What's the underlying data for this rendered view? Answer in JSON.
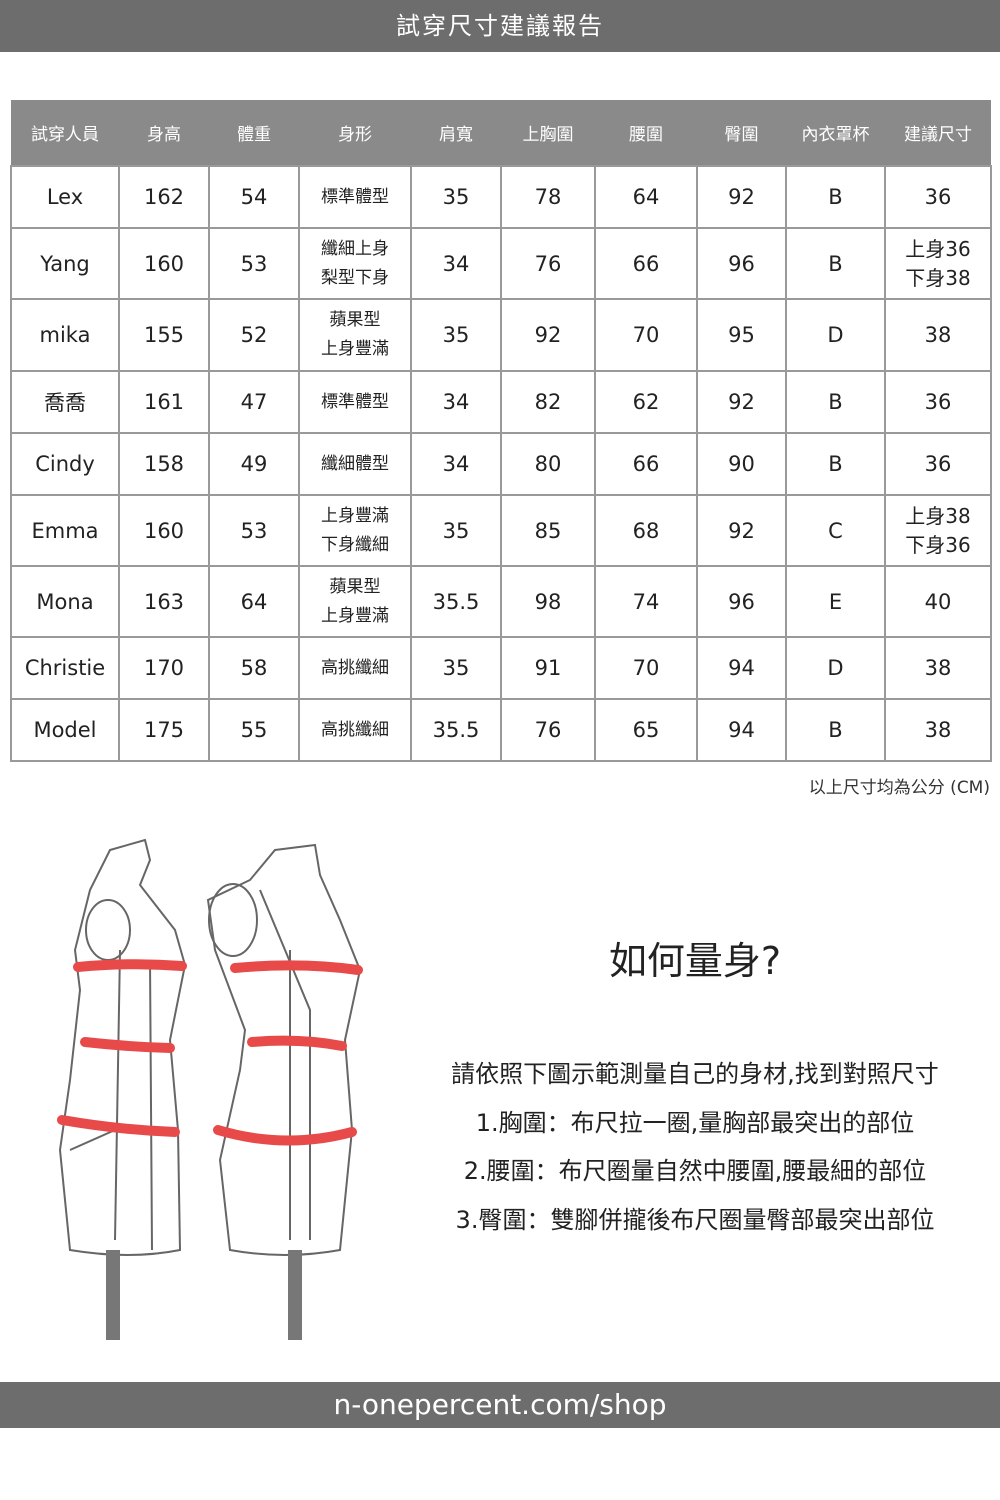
{
  "header": {
    "title": "試穿尺寸建議報告"
  },
  "table": {
    "columns": [
      "試穿人員",
      "身高",
      "體重",
      "身形",
      "肩寬",
      "上胸圍",
      "腰圍",
      "臀圍",
      "內衣罩杯",
      "建議尺寸"
    ],
    "rows": [
      [
        "Lex",
        "162",
        "54",
        [
          "標準體型"
        ],
        "35",
        "78",
        "64",
        "92",
        "B",
        [
          "36"
        ]
      ],
      [
        "Yang",
        "160",
        "53",
        [
          "纖細上身",
          "梨型下身"
        ],
        "34",
        "76",
        "66",
        "96",
        "B",
        [
          "上身36",
          "下身38"
        ]
      ],
      [
        "mika",
        "155",
        "52",
        [
          "蘋果型",
          "上身豐滿"
        ],
        "35",
        "92",
        "70",
        "95",
        "D",
        [
          "38"
        ]
      ],
      [
        "喬喬",
        "161",
        "47",
        [
          "標準體型"
        ],
        "34",
        "82",
        "62",
        "92",
        "B",
        [
          "36"
        ]
      ],
      [
        "Cindy",
        "158",
        "49",
        [
          "纖細體型"
        ],
        "34",
        "80",
        "66",
        "90",
        "B",
        [
          "36"
        ]
      ],
      [
        "Emma",
        "160",
        "53",
        [
          "上身豐滿",
          "下身纖細"
        ],
        "35",
        "85",
        "68",
        "92",
        "C",
        [
          "上身38",
          "下身36"
        ]
      ],
      [
        "Mona",
        "163",
        "64",
        [
          "蘋果型",
          "上身豐滿"
        ],
        "35.5",
        "98",
        "74",
        "96",
        "E",
        [
          "40"
        ]
      ],
      [
        "Christie",
        "170",
        "58",
        [
          "高挑纖細"
        ],
        "35",
        "91",
        "70",
        "94",
        "D",
        [
          "38"
        ]
      ],
      [
        "Model",
        "175",
        "55",
        [
          "高挑纖細"
        ],
        "35.5",
        "76",
        "65",
        "94",
        "B",
        [
          "38"
        ]
      ]
    ],
    "note": "以上尺寸均為公分 (CM)"
  },
  "guide": {
    "title": "如何量身?",
    "lines": [
      "請依照下圖示範測量自己的身材,找到對照尺寸",
      "1.胸圍：布尺拉一圈,量胸部最突出的部位",
      "2.腰圍：布尺圈量自然中腰圍,腰最細的部位",
      "3.臀圍：雙腳併攏後布尺圈量臀部最突出部位"
    ]
  },
  "colors": {
    "bar": "#6d6d6d",
    "table_header": "#8a8a8a",
    "measure_band": "#e84a4a"
  },
  "footer": {
    "url": "n-onepercent.com/shop"
  }
}
